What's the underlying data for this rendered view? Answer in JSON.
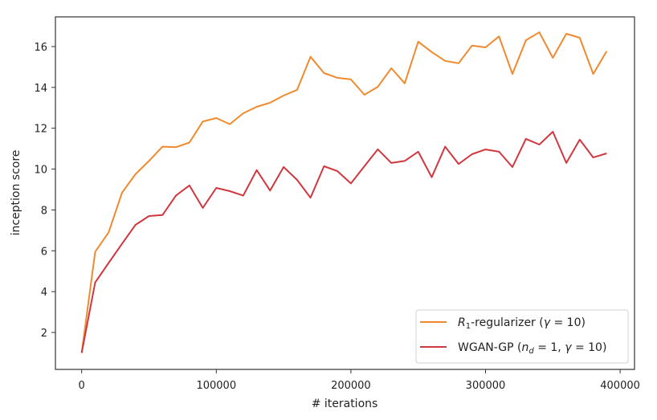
{
  "chart_data": {
    "type": "line",
    "title": "",
    "xlabel": "# iterations",
    "ylabel": "inception score",
    "xlim": [
      -23000,
      413000
    ],
    "ylim": [
      0.2,
      17.3
    ],
    "xticks": [
      0,
      100000,
      200000,
      300000,
      400000
    ],
    "yticks": [
      2,
      4,
      6,
      8,
      10,
      12,
      14,
      16
    ],
    "grid": false,
    "legend_position": "lower right",
    "x": [
      0,
      10000,
      20000,
      30000,
      40000,
      50000,
      60000,
      70000,
      80000,
      90000,
      100000,
      110000,
      120000,
      130000,
      140000,
      150000,
      160000,
      170000,
      180000,
      190000,
      200000,
      210000,
      220000,
      230000,
      240000,
      250000,
      260000,
      270000,
      280000,
      290000,
      300000,
      310000,
      320000,
      330000,
      340000,
      350000,
      360000,
      370000,
      380000,
      390000
    ],
    "series": [
      {
        "name": "R1-regularizer (γ = 10)",
        "color": "#ef8a2e",
        "values": [
          1.0,
          5.95,
          6.9,
          8.85,
          9.75,
          10.4,
          11.1,
          11.07,
          11.3,
          12.33,
          12.5,
          12.2,
          12.73,
          13.05,
          13.25,
          13.6,
          13.88,
          15.5,
          14.7,
          14.47,
          14.39,
          13.64,
          14.03,
          14.94,
          14.2,
          16.24,
          15.73,
          15.3,
          15.18,
          16.05,
          15.96,
          16.5,
          14.66,
          16.31,
          16.7,
          15.45,
          16.63,
          16.43,
          14.66,
          15.77
        ]
      },
      {
        "name": "WGAN-GP (nd = 1, γ = 10)",
        "color": "#d0383f",
        "values": [
          1.0,
          4.45,
          5.4,
          6.35,
          7.27,
          7.7,
          7.75,
          8.7,
          9.2,
          8.1,
          9.08,
          8.92,
          8.7,
          9.95,
          8.95,
          10.1,
          9.47,
          8.6,
          10.14,
          9.9,
          9.3,
          10.14,
          10.97,
          10.3,
          10.4,
          10.85,
          9.6,
          11.1,
          10.25,
          10.73,
          10.96,
          10.85,
          10.1,
          11.48,
          11.2,
          11.83,
          10.3,
          11.44,
          10.57,
          10.77
        ]
      }
    ]
  },
  "legend": {
    "items": [
      {
        "main": "R",
        "sub": "1",
        "rest": "-regularizer (",
        "gamma": "γ",
        "tail": " = 10)"
      },
      {
        "main": "WGAN-GP (",
        "n": "n",
        "sub": "d",
        "mid": " = 1, ",
        "gamma": "γ",
        "tail": " = 10)"
      }
    ]
  }
}
